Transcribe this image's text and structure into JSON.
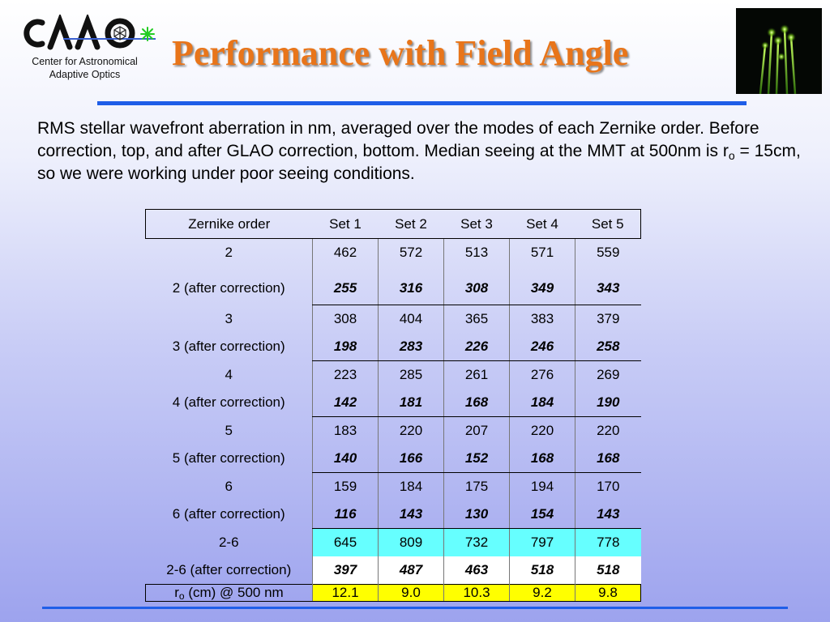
{
  "logo": {
    "text": "CAAO",
    "subtitle_line1": "Center for Astronomical",
    "subtitle_line2": "Adaptive Optics"
  },
  "title": "Performance with Field Angle",
  "intro": {
    "part1": "RMS stellar wavefront aberration in nm, averaged over the modes of each Zernike order. Before correction, top, and after GLAO correction, bottom. Median seeing at the MMT at 500nm is r",
    "sub": "o",
    "part2": " = 15cm, so we were working under poor seeing conditions."
  },
  "table": {
    "headers": [
      "Zernike order",
      "Set 1",
      "Set 2",
      "Set 3",
      "Set 4",
      "Set 5"
    ],
    "rows": [
      {
        "label": "2",
        "values": [
          "462",
          "572",
          "513",
          "571",
          "559"
        ]
      },
      {
        "label": "2 (after correction)",
        "values": [
          "255",
          "316",
          "308",
          "349",
          "343"
        ]
      },
      {
        "label": "3",
        "values": [
          "308",
          "404",
          "365",
          "383",
          "379"
        ]
      },
      {
        "label": "3 (after correction)",
        "values": [
          "198",
          "283",
          "226",
          "246",
          "258"
        ]
      },
      {
        "label": "4",
        "values": [
          "223",
          "285",
          "261",
          "276",
          "269"
        ]
      },
      {
        "label": "4 (after correction)",
        "values": [
          "142",
          "181",
          "168",
          "184",
          "190"
        ]
      },
      {
        "label": "5",
        "values": [
          "183",
          "220",
          "207",
          "220",
          "220"
        ]
      },
      {
        "label": "5 (after correction)",
        "values": [
          "140",
          "166",
          "152",
          "168",
          "168"
        ]
      },
      {
        "label": "6",
        "values": [
          "159",
          "184",
          "175",
          "194",
          "170"
        ]
      },
      {
        "label": "6 (after correction)",
        "values": [
          "116",
          "143",
          "130",
          "154",
          "143"
        ]
      },
      {
        "label": "2-6",
        "values": [
          "645",
          "809",
          "732",
          "797",
          "778"
        ]
      },
      {
        "label": "2-6 (after correction)",
        "values": [
          "397",
          "487",
          "463",
          "518",
          "518"
        ]
      }
    ],
    "ro_row": {
      "label_r": "r",
      "label_sub": "o",
      "label_rest": " (cm) @ 500 nm",
      "values": [
        "12.1",
        "9.0",
        "10.3",
        "9.2",
        "9.8"
      ]
    }
  },
  "colors": {
    "title": "#e8751a",
    "rule": "#1f5ee8",
    "highlight_cyan": "#66ffff",
    "highlight_yellow": "#ffff00"
  }
}
